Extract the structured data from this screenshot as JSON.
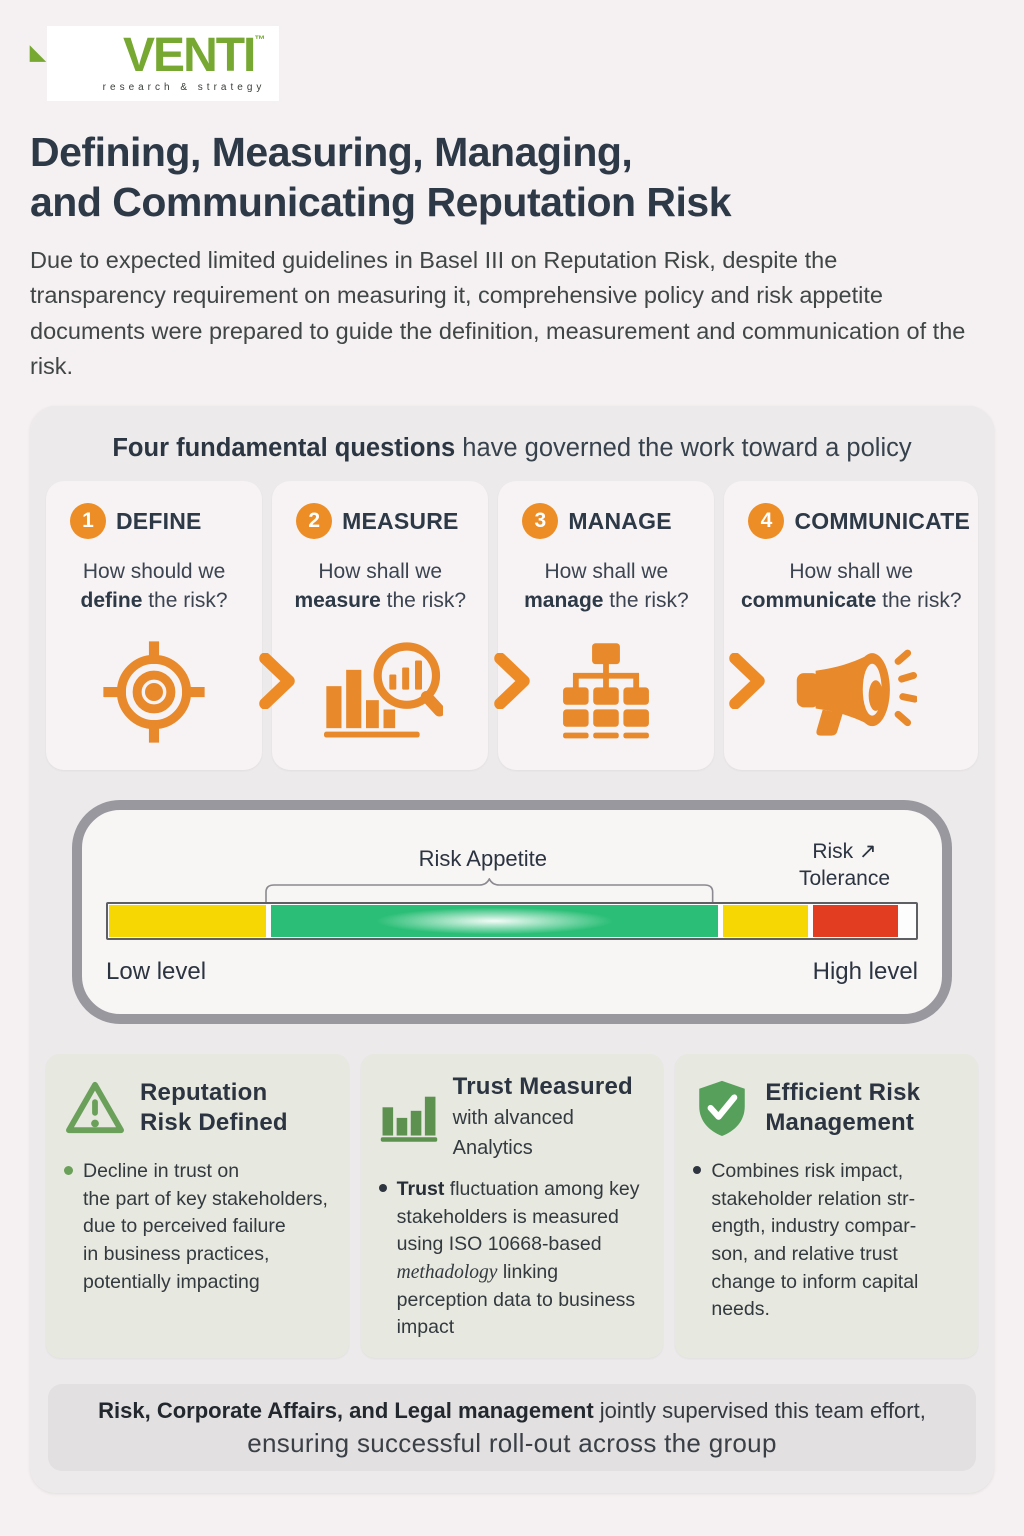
{
  "logo": {
    "brand": "VENTI",
    "tm": "™",
    "tagline": "research & strategy"
  },
  "title": {
    "line1": "Defining, Measuring, Managing,",
    "line2": "and Communicating Reputation Risk"
  },
  "intro": "Due to expected limited guidelines in Basel III on Reputation Risk, despite the transparency requirement on measuring it, comprehensive policy and risk appetite documents were prepared to guide the definition, measurement and communication of the risk.",
  "panel": {
    "heading_bold": "Four fundamental questions",
    "heading_rest": " have governed the work toward a policy"
  },
  "questions": [
    {
      "step": "1",
      "label": "DEFINE",
      "q_prefix": "How should we ",
      "q_bold": "define",
      "q_suffix": " the risk?",
      "icon": "target-icon"
    },
    {
      "step": "2",
      "label": "MEASURE",
      "q_prefix": "How shall we ",
      "q_bold": "measure",
      "q_suffix": " the risk?",
      "icon": "chart-magnifier-icon"
    },
    {
      "step": "3",
      "label": "MANAGE",
      "q_prefix": "How shall we ",
      "q_bold": "manage",
      "q_suffix": " the risk?",
      "icon": "org-chart-icon"
    },
    {
      "step": "4",
      "label": "COMMUNICATE",
      "q_prefix": "How shall we ",
      "q_bold": "communicate",
      "q_suffix": " the risk?",
      "icon": "megaphone-icon"
    }
  ],
  "risk_scale": {
    "appetite_label": "Risk Appetite",
    "tolerance_word1": "Risk",
    "tolerance_arrow": "↗",
    "tolerance_word2": "Tolerance",
    "low_label": "Low level",
    "high_label": "High level",
    "segments": [
      {
        "name": "low-yellow",
        "color": "#f6d703",
        "width_pct": 19.5
      },
      {
        "name": "appetite-green",
        "color": "#2abe76",
        "width_pct": 55.5,
        "glow": true
      },
      {
        "name": "high-yellow",
        "color": "#f6d703",
        "width_pct": 10.5
      },
      {
        "name": "tolerance-red",
        "color": "#e23c21",
        "width_pct": 10.5
      }
    ]
  },
  "info_cards": [
    {
      "title_line1": "Reputation",
      "title_line2": "Risk Defined",
      "icon": "warning-triangle-icon",
      "body_lines": [
        "Decline in trust on",
        "the part of key stakeholders,",
        "due to perceived failure",
        "in business practices,",
        "potentially impacting"
      ]
    },
    {
      "title_line1": "Trust Measured",
      "subtitle": "with alvanced Analytics",
      "icon": "bar-chart-icon",
      "body_bold": "Trust",
      "body_seg1": " fluctuation among key stakeholders is measured using ISO 10668-based ",
      "body_italic": "methadology",
      "body_seg2": " linking perception data to business impact"
    },
    {
      "title_line1": "Efficient Risk",
      "title_line2": "Management",
      "icon": "shield-check-icon",
      "body_lines": [
        "Combines risk impact,",
        "stakeholder relation str-",
        "ength, industry compar-",
        "son, and relative trust",
        "change to inform capital needs."
      ]
    }
  ],
  "footer": {
    "line1_bold": "Risk, Corporate Affairs, and Legal management",
    "line1_rest": " jointly supervised this team effort,",
    "line2": "ensuring successful roll-out across the group"
  },
  "colors": {
    "accent_orange": "#e8892b",
    "brand_green": "#76a832",
    "icon_green": "#5f9b53",
    "heading_dark": "#2e3a46",
    "scale_yellow": "#f6d703",
    "scale_green": "#2abe76",
    "scale_red": "#e23c21"
  }
}
